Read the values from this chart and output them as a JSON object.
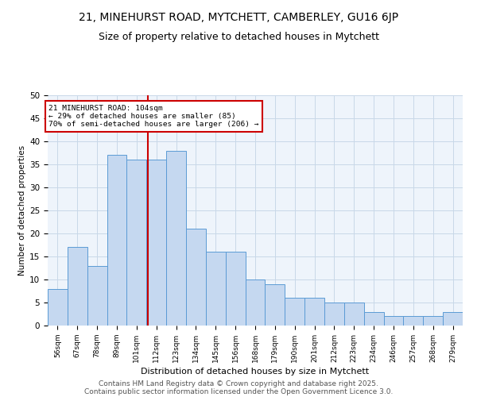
{
  "title": "21, MINEHURST ROAD, MYTCHETT, CAMBERLEY, GU16 6JP",
  "subtitle": "Size of property relative to detached houses in Mytchett",
  "xlabel": "Distribution of detached houses by size in Mytchett",
  "ylabel": "Number of detached properties",
  "bar_color": "#c5d8f0",
  "bar_edge_color": "#5b9bd5",
  "categories": [
    "56sqm",
    "67sqm",
    "78sqm",
    "89sqm",
    "101sqm",
    "112sqm",
    "123sqm",
    "134sqm",
    "145sqm",
    "156sqm",
    "168sqm",
    "179sqm",
    "190sqm",
    "201sqm",
    "212sqm",
    "223sqm",
    "234sqm",
    "246sqm",
    "257sqm",
    "268sqm",
    "279sqm"
  ],
  "values": [
    8,
    17,
    13,
    37,
    36,
    36,
    38,
    21,
    16,
    16,
    10,
    9,
    6,
    6,
    5,
    5,
    3,
    2,
    2,
    2,
    3
  ],
  "ylim": [
    0,
    50
  ],
  "yticks": [
    0,
    5,
    10,
    15,
    20,
    25,
    30,
    35,
    40,
    45,
    50
  ],
  "vline_x": 4.55,
  "vline_color": "#cc0000",
  "annotation_line1": "21 MINEHURST ROAD: 104sqm",
  "annotation_line2": "← 29% of detached houses are smaller (85)",
  "annotation_line3": "70% of semi-detached houses are larger (206) →",
  "annotation_box_color": "#cc0000",
  "grid_color": "#c8d8e8",
  "bg_color": "#eef4fb",
  "footer_line1": "Contains HM Land Registry data © Crown copyright and database right 2025.",
  "footer_line2": "Contains public sector information licensed under the Open Government Licence 3.0.",
  "title_fontsize": 10,
  "subtitle_fontsize": 9,
  "footer_fontsize": 6.5
}
